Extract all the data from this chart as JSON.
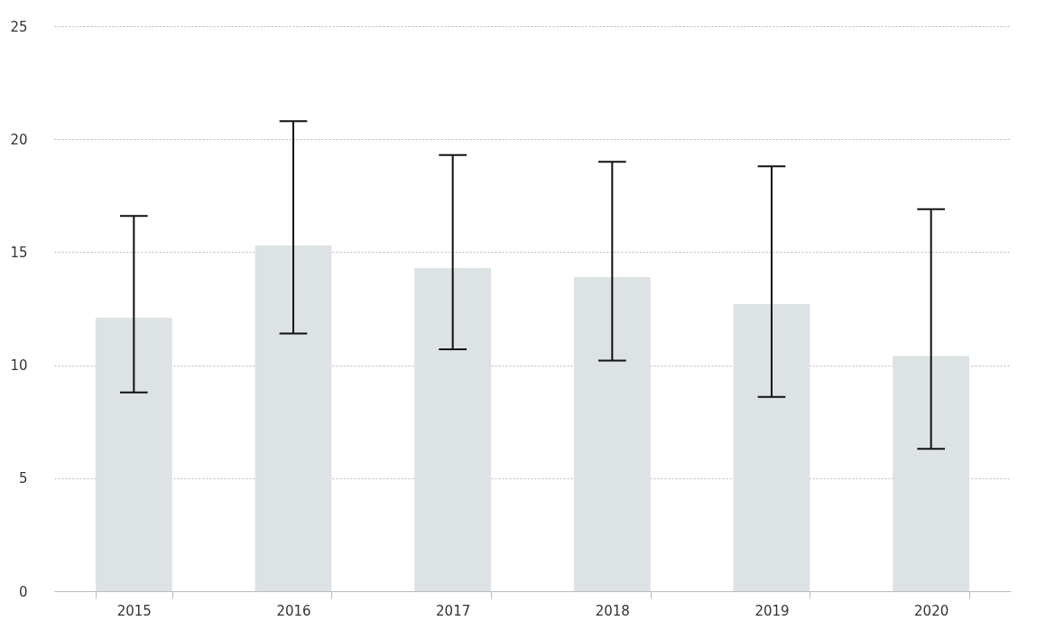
{
  "chart_data": {
    "type": "bar",
    "categories": [
      "2015",
      "2016",
      "2017",
      "2018",
      "2019",
      "2020"
    ],
    "values": [
      12.1,
      15.3,
      14.3,
      13.9,
      12.7,
      10.4
    ],
    "errors": [
      [
        8.8,
        16.6
      ],
      [
        11.4,
        20.8
      ],
      [
        10.7,
        19.3
      ],
      [
        10.2,
        19.0
      ],
      [
        8.6,
        18.8
      ],
      [
        6.3,
        16.9
      ]
    ],
    "color": "#dde2e4",
    "ylim": [
      0,
      25
    ],
    "yticks": [
      0,
      5,
      10,
      15,
      20,
      25
    ],
    "grid": "y"
  }
}
